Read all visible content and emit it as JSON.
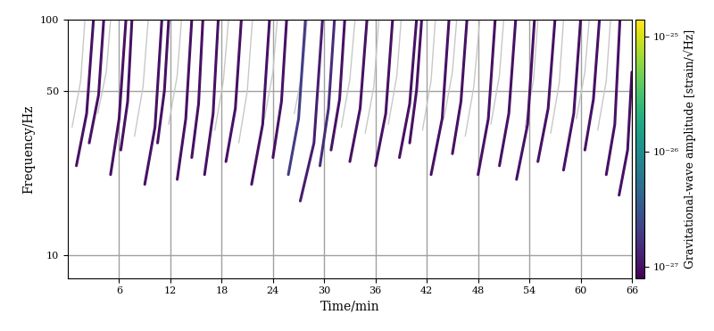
{
  "chart_data": {
    "type": "spectrogram",
    "xlabel": "Time/min",
    "ylabel": "Frequency/Hz",
    "log": "y",
    "grid": true,
    "xlim": [
      0,
      66
    ],
    "xticks": [
      6,
      12,
      18,
      24,
      30,
      36,
      42,
      48,
      54,
      60,
      66
    ],
    "ylim": [
      8,
      100
    ],
    "yticks": [
      10,
      50,
      100
    ],
    "colorbar": {
      "label": "Gravitational-wave amplitude [strain/√Hz]",
      "range": [
        8e-28,
        1.4e-25
      ],
      "ticks": [
        {
          "value": 1e-27,
          "label": "10⁻²⁷"
        },
        {
          "value": 1e-26,
          "label": "10⁻²⁶"
        },
        {
          "value": 1e-25,
          "label": "10⁻²⁵"
        }
      ]
    },
    "tracks": [
      {
        "amplitude": 5e-28,
        "t": [
          0.5,
          1.5,
          2.0
        ],
        "f": [
          35,
          55,
          100
        ]
      },
      {
        "amplitude": 5e-28,
        "t": [
          3.5,
          4.5,
          5.0
        ],
        "f": [
          40,
          60,
          100
        ]
      },
      {
        "amplitude": 5e-28,
        "t": [
          7.8,
          8.8,
          9.4
        ],
        "f": [
          32,
          52,
          100
        ]
      },
      {
        "amplitude": 5e-28,
        "t": [
          11.8,
          12.8,
          13.3
        ],
        "f": [
          36,
          58,
          100
        ]
      },
      {
        "amplitude": 5e-28,
        "t": [
          17.2,
          18.2,
          18.8
        ],
        "f": [
          34,
          55,
          100
        ]
      },
      {
        "amplitude": 5e-28,
        "t": [
          20.0,
          21.0,
          21.6
        ],
        "f": [
          30,
          50,
          100
        ]
      },
      {
        "amplitude": 5e-28,
        "t": [
          23.0,
          24.0,
          24.5
        ],
        "f": [
          38,
          60,
          100
        ]
      },
      {
        "amplitude": 5e-28,
        "t": [
          26.5,
          27.5,
          28.0
        ],
        "f": [
          40,
          62,
          100
        ]
      },
      {
        "amplitude": 5e-28,
        "t": [
          32.0,
          33.0,
          33.6
        ],
        "f": [
          35,
          56,
          100
        ]
      },
      {
        "amplitude": 5e-28,
        "t": [
          34.8,
          35.8,
          36.4
        ],
        "f": [
          33,
          52,
          100
        ]
      },
      {
        "amplitude": 5e-28,
        "t": [
          37.5,
          38.5,
          39.0
        ],
        "f": [
          36,
          58,
          100
        ]
      },
      {
        "amplitude": 5e-28,
        "t": [
          41.5,
          42.5,
          43.0
        ],
        "f": [
          34,
          55,
          100
        ]
      },
      {
        "amplitude": 5e-28,
        "t": [
          44.0,
          45.0,
          45.5
        ],
        "f": [
          38,
          60,
          100
        ]
      },
      {
        "amplitude": 5e-28,
        "t": [
          46.5,
          47.5,
          48.2
        ],
        "f": [
          32,
          52,
          100
        ]
      },
      {
        "amplitude": 5e-28,
        "t": [
          49.5,
          50.5,
          51.0
        ],
        "f": [
          36,
          58,
          100
        ]
      },
      {
        "amplitude": 5e-28,
        "t": [
          53.5,
          54.5,
          55.0
        ],
        "f": [
          35,
          56,
          100
        ]
      },
      {
        "amplitude": 5e-28,
        "t": [
          56.5,
          57.5,
          58.0
        ],
        "f": [
          33,
          54,
          100
        ]
      },
      {
        "amplitude": 5e-28,
        "t": [
          59.5,
          60.5,
          61.0
        ],
        "f": [
          38,
          60,
          100
        ]
      },
      {
        "amplitude": 5e-28,
        "t": [
          62.0,
          63.0,
          63.5
        ],
        "f": [
          34,
          55,
          100
        ]
      },
      {
        "amplitude": 1e-27,
        "t": [
          1.0,
          2.2,
          3.0
        ],
        "f": [
          24,
          40,
          100
        ]
      },
      {
        "amplitude": 1e-27,
        "t": [
          2.5,
          3.6,
          4.2
        ],
        "f": [
          30,
          48,
          100
        ]
      },
      {
        "amplitude": 1e-27,
        "t": [
          5.0,
          6.0,
          6.8
        ],
        "f": [
          22,
          38,
          100
        ]
      },
      {
        "amplitude": 1e-27,
        "t": [
          6.2,
          7.0,
          7.5
        ],
        "f": [
          28,
          45,
          100
        ]
      },
      {
        "amplitude": 1e-27,
        "t": [
          9.0,
          10.2,
          11.0
        ],
        "f": [
          20,
          35,
          100
        ]
      },
      {
        "amplitude": 1e-27,
        "t": [
          10.5,
          11.3,
          11.8
        ],
        "f": [
          30,
          50,
          100
        ]
      },
      {
        "amplitude": 1e-27,
        "t": [
          12.8,
          13.8,
          14.5
        ],
        "f": [
          21,
          38,
          100
        ]
      },
      {
        "amplitude": 1e-27,
        "t": [
          14.5,
          15.3,
          15.8
        ],
        "f": [
          26,
          44,
          100
        ]
      },
      {
        "amplitude": 1e-27,
        "t": [
          16.0,
          17.0,
          17.6
        ],
        "f": [
          22,
          40,
          100
        ]
      },
      {
        "amplitude": 1e-27,
        "t": [
          18.5,
          19.6,
          20.3
        ],
        "f": [
          25,
          42,
          100
        ]
      },
      {
        "amplitude": 1e-27,
        "t": [
          21.5,
          22.8,
          23.6
        ],
        "f": [
          20,
          36,
          100
        ]
      },
      {
        "amplitude": 1e-27,
        "t": [
          24.0,
          25.0,
          25.6
        ],
        "f": [
          26,
          45,
          100
        ]
      },
      {
        "amplitude": 2e-27,
        "t": [
          25.8,
          27.0,
          27.8
        ],
        "f": [
          22,
          38,
          100
        ]
      },
      {
        "amplitude": 1.2e-27,
        "t": [
          27.2,
          28.8,
          29.8
        ],
        "f": [
          17,
          30,
          100
        ]
      },
      {
        "amplitude": 1.5e-27,
        "t": [
          29.5,
          30.5,
          31.2
        ],
        "f": [
          24,
          42,
          100
        ]
      },
      {
        "amplitude": 1e-27,
        "t": [
          30.8,
          31.8,
          32.4
        ],
        "f": [
          28,
          46,
          100
        ]
      },
      {
        "amplitude": 1e-27,
        "t": [
          33.0,
          34.2,
          35.0
        ],
        "f": [
          25,
          42,
          100
        ]
      },
      {
        "amplitude": 1e-27,
        "t": [
          36.0,
          37.2,
          38.0
        ],
        "f": [
          24,
          40,
          100
        ]
      },
      {
        "amplitude": 1e-27,
        "t": [
          38.8,
          40.0,
          40.8
        ],
        "f": [
          26,
          44,
          100
        ]
      },
      {
        "amplitude": 1e-27,
        "t": [
          40.0,
          40.8,
          41.4
        ],
        "f": [
          30,
          50,
          100
        ]
      },
      {
        "amplitude": 1e-27,
        "t": [
          42.5,
          43.8,
          44.6
        ],
        "f": [
          22,
          38,
          100
        ]
      },
      {
        "amplitude": 1e-27,
        "t": [
          45.0,
          46.0,
          46.7
        ],
        "f": [
          27,
          45,
          100
        ]
      },
      {
        "amplitude": 1e-27,
        "t": [
          48.0,
          49.2,
          50.0
        ],
        "f": [
          22,
          38,
          100
        ]
      },
      {
        "amplitude": 1e-27,
        "t": [
          50.5,
          51.6,
          52.4
        ],
        "f": [
          24,
          40,
          100
        ]
      },
      {
        "amplitude": 1e-27,
        "t": [
          52.5,
          53.8,
          54.6
        ],
        "f": [
          21,
          36,
          100
        ]
      },
      {
        "amplitude": 1e-27,
        "t": [
          55.0,
          56.2,
          57.0
        ],
        "f": [
          25,
          42,
          100
        ]
      },
      {
        "amplitude": 1e-27,
        "t": [
          58.0,
          59.2,
          60.0
        ],
        "f": [
          23,
          40,
          100
        ]
      },
      {
        "amplitude": 1e-27,
        "t": [
          60.5,
          61.5,
          62.2
        ],
        "f": [
          28,
          46,
          100
        ]
      },
      {
        "amplitude": 1e-27,
        "t": [
          63.0,
          64.0,
          64.6
        ],
        "f": [
          22,
          36,
          100
        ]
      },
      {
        "amplitude": 1e-27,
        "t": [
          64.5,
          65.5,
          66.0
        ],
        "f": [
          18,
          28,
          60
        ]
      }
    ]
  }
}
